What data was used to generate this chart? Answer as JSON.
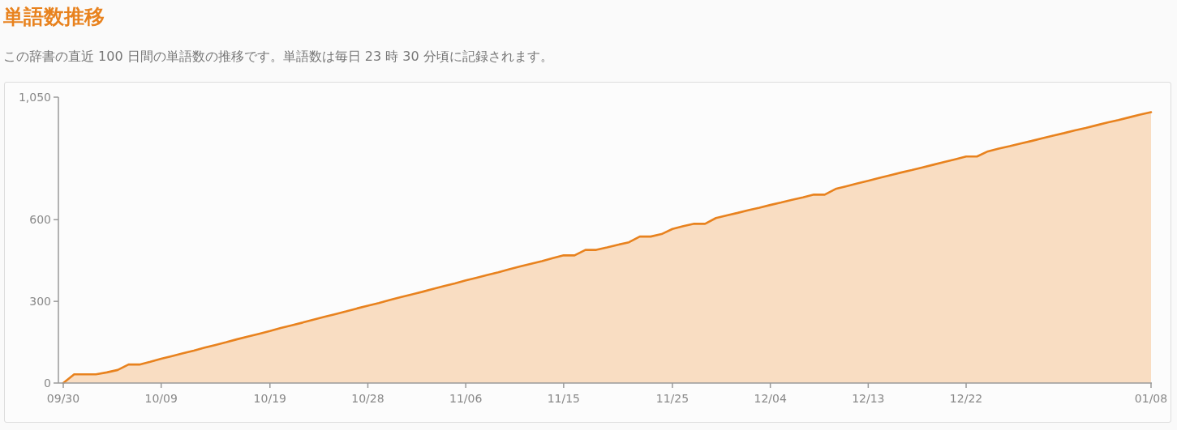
{
  "chart_data": {
    "type": "area",
    "title": "単語数推移",
    "subtitle": "この辞書の直近 100 日間の単語数の推移です。単語数は毎日 23 時 30 分頃に記録されます。",
    "categories": [
      "09/30",
      null,
      null,
      null,
      null,
      null,
      null,
      null,
      null,
      "10/09",
      null,
      null,
      null,
      null,
      null,
      null,
      null,
      null,
      null,
      "10/19",
      null,
      null,
      null,
      null,
      null,
      null,
      null,
      null,
      "10/28",
      null,
      null,
      null,
      null,
      null,
      null,
      null,
      null,
      "11/06",
      null,
      null,
      null,
      null,
      null,
      null,
      null,
      null,
      "11/15",
      null,
      null,
      null,
      null,
      null,
      null,
      null,
      null,
      null,
      "11/25",
      null,
      null,
      null,
      null,
      null,
      null,
      null,
      null,
      "12/04",
      null,
      null,
      null,
      null,
      null,
      null,
      null,
      null,
      "12/13",
      null,
      null,
      null,
      null,
      null,
      null,
      null,
      null,
      "12/22",
      null,
      null,
      null,
      null,
      null,
      null,
      null,
      null,
      null,
      null,
      null,
      null,
      null,
      null,
      null,
      null,
      "01/08"
    ],
    "series": [
      {
        "color": "#e8821e",
        "values": [
          0,
          32,
          32,
          32,
          39,
          48,
          68,
          68,
          78,
          89,
          99,
          109,
          119,
          130,
          140,
          150,
          161,
          171,
          181,
          191,
          202,
          212,
          222,
          233,
          243,
          253,
          263,
          274,
          284,
          294,
          305,
          315,
          325,
          335,
          346,
          356,
          366,
          377,
          387,
          397,
          407,
          418,
          428,
          438,
          448,
          459,
          469,
          469,
          489,
          489,
          498,
          508,
          517,
          538,
          538,
          547,
          566,
          576,
          585,
          585,
          606,
          616,
          625,
          635,
          644,
          654,
          663,
          673,
          682,
          692,
          692,
          713,
          723,
          733,
          743,
          753,
          763,
          773,
          782,
          792,
          802,
          812,
          822,
          832,
          832,
          851,
          861,
          870,
          880,
          889,
          899,
          909,
          918,
          928,
          937,
          947,
          957,
          966,
          976,
          986,
          995
        ]
      }
    ],
    "ylim": [
      0,
      1050
    ],
    "yticks": [
      0,
      300,
      600,
      {
        "value": 1050,
        "label": "1,050"
      }
    ]
  }
}
